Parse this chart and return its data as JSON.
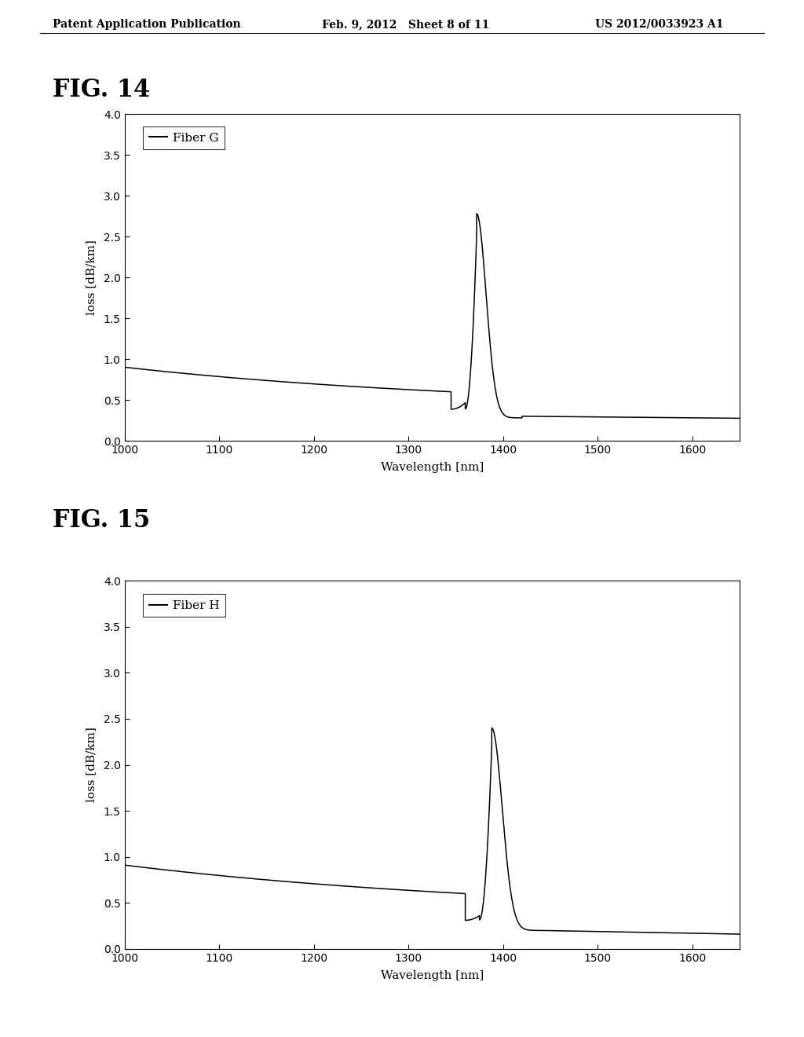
{
  "fig_title1": "FIG. 14",
  "fig_title2": "FIG. 15",
  "header_left": "Patent Application Publication",
  "header_mid": "Feb. 9, 2012   Sheet 8 of 11",
  "header_right": "US 2012/0033923 A1",
  "xlabel": "Wavelength [nm]",
  "ylabel": "loss [dB/km]",
  "xmin": 1000,
  "xmax": 1650,
  "ymin": 0.0,
  "ymax": 4.0,
  "xticks": [
    1000,
    1100,
    1200,
    1300,
    1400,
    1500,
    1600
  ],
  "yticks": [
    0.0,
    0.5,
    1.0,
    1.5,
    2.0,
    2.5,
    3.0,
    3.5,
    4.0
  ],
  "legend1": "Fiber G",
  "legend2": "Fiber H",
  "line_color": "#000000",
  "background_color": "#ffffff",
  "header_fontsize": 10,
  "fig_label_fontsize": 22,
  "axis_fontsize": 11,
  "tick_fontsize": 10,
  "legend_fontsize": 11
}
